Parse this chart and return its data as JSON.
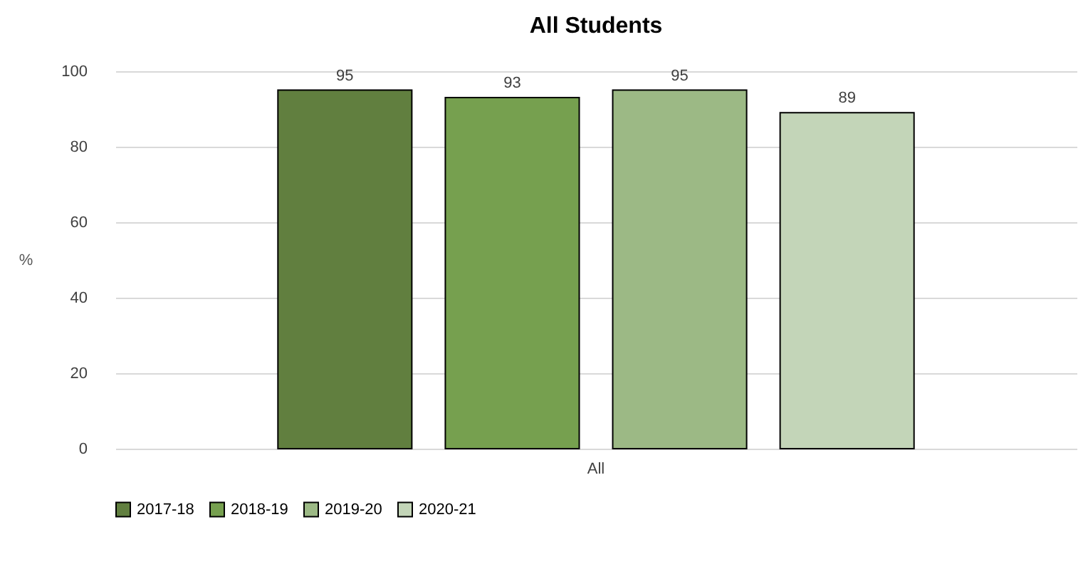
{
  "chart_data": {
    "type": "bar",
    "title": "All Students",
    "ylabel": "%",
    "categories": [
      "All"
    ],
    "series": [
      {
        "name": "2017-18",
        "color": "#617f3f",
        "values": [
          95
        ]
      },
      {
        "name": "2018-19",
        "color": "#76a04f",
        "values": [
          93
        ]
      },
      {
        "name": "2019-20",
        "color": "#9cb985",
        "values": [
          95
        ]
      },
      {
        "name": "2020-21",
        "color": "#c3d5b8",
        "values": [
          89
        ]
      }
    ],
    "ylim": [
      0,
      100
    ],
    "yticks": [
      0,
      20,
      40,
      60,
      80,
      100
    ],
    "grid": "y",
    "legend": "bottom",
    "data_labels": true
  }
}
